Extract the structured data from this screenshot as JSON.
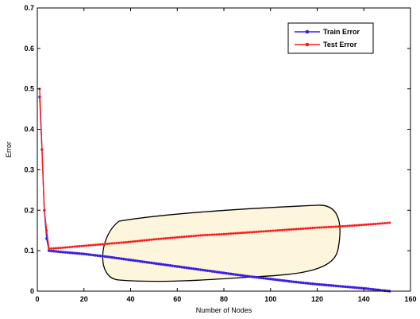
{
  "chart_data": {
    "type": "line",
    "title": "",
    "xlabel": "Number of Nodes",
    "ylabel": "Error",
    "xlim": [
      0,
      160
    ],
    "ylim": [
      0,
      0.7
    ],
    "xticks": [
      0,
      20,
      40,
      60,
      80,
      100,
      120,
      140,
      160
    ],
    "yticks": [
      0,
      0.1,
      0.2,
      0.3,
      0.4,
      0.5,
      0.6,
      0.7
    ],
    "grid": false,
    "legend": {
      "position": "top-right"
    },
    "series": [
      {
        "name": "Train Error",
        "color": "#3a1fe0",
        "marker": "circle",
        "x": [
          1,
          2,
          3,
          4,
          5,
          10,
          20,
          30,
          40,
          50,
          60,
          70,
          80,
          90,
          100,
          110,
          120,
          130,
          140,
          151
        ],
        "y": [
          0.48,
          0.35,
          0.2,
          0.13,
          0.1,
          0.097,
          0.092,
          0.085,
          0.077,
          0.069,
          0.061,
          0.053,
          0.045,
          0.037,
          0.03,
          0.023,
          0.017,
          0.012,
          0.007,
          0.0
        ]
      },
      {
        "name": "Test Error",
        "color": "#ff1a1a",
        "marker": "star",
        "x": [
          1,
          2,
          3,
          4,
          5,
          10,
          20,
          30,
          40,
          50,
          60,
          70,
          80,
          90,
          100,
          110,
          120,
          130,
          140,
          151
        ],
        "y": [
          0.5,
          0.35,
          0.2,
          0.15,
          0.105,
          0.107,
          0.112,
          0.117,
          0.122,
          0.128,
          0.133,
          0.138,
          0.141,
          0.145,
          0.149,
          0.153,
          0.157,
          0.16,
          0.164,
          0.169
        ]
      }
    ],
    "annotations": [
      {
        "type": "highlight-blob",
        "fill": "#fdf5dc",
        "stroke": "#000000"
      }
    ]
  }
}
